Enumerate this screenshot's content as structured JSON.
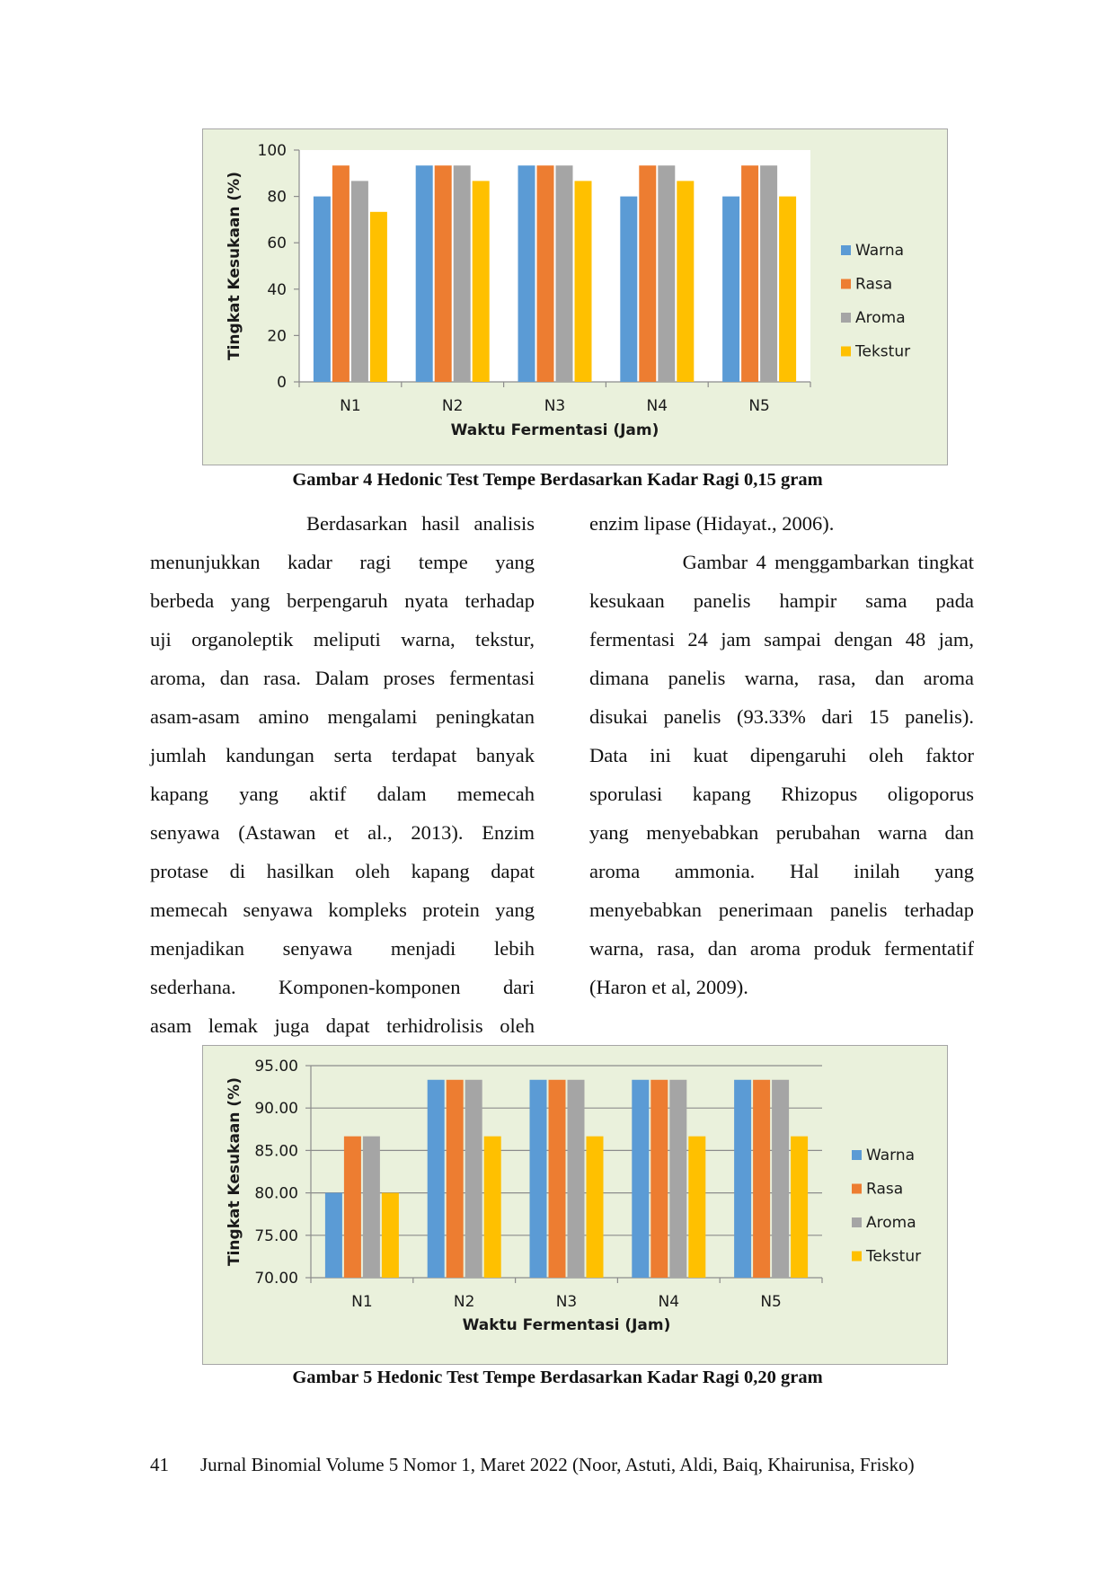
{
  "chart_data": [
    {
      "type": "bar",
      "categories": [
        "N1",
        "N2",
        "N3",
        "N4",
        "N5"
      ],
      "series": [
        {
          "name": "Warna",
          "values": [
            80,
            93.33,
            93.33,
            80,
            80
          ]
        },
        {
          "name": "Rasa",
          "values": [
            93.33,
            93.33,
            93.33,
            93.33,
            93.33
          ]
        },
        {
          "name": "Aroma",
          "values": [
            86.67,
            93.33,
            93.33,
            93.33,
            93.33
          ]
        },
        {
          "name": "Tekstur",
          "values": [
            73.33,
            86.67,
            86.67,
            86.67,
            80
          ]
        }
      ],
      "xlabel": "Waktu Fermentasi (Jam)",
      "ylabel": "Tingkat Kesukaan (%)",
      "ylim": [
        0,
        100
      ],
      "yticks": [
        "0",
        "20",
        "40",
        "60",
        "80",
        "100"
      ],
      "grid": false,
      "legend": "right",
      "colors": [
        "#5b9bd5",
        "#ed7d31",
        "#a5a5a5",
        "#ffc000"
      ]
    },
    {
      "type": "bar",
      "categories": [
        "N1",
        "N2",
        "N3",
        "N4",
        "N5"
      ],
      "series": [
        {
          "name": "Warna",
          "values": [
            80,
            93.33,
            93.33,
            93.33,
            93.33
          ]
        },
        {
          "name": "Rasa",
          "values": [
            86.67,
            93.33,
            93.33,
            93.33,
            93.33
          ]
        },
        {
          "name": "Aroma",
          "values": [
            86.67,
            93.33,
            93.33,
            93.33,
            93.33
          ]
        },
        {
          "name": "Tekstur",
          "values": [
            80,
            86.67,
            86.67,
            86.67,
            86.67
          ]
        }
      ],
      "xlabel": "Waktu Fermentasi (Jam)",
      "ylabel": "Tingkat Kesukaan (%)",
      "ylim": [
        70,
        95
      ],
      "yticks": [
        "70.00",
        "75.00",
        "80.00",
        "85.00",
        "90.00",
        "95.00"
      ],
      "grid": true,
      "legend": "right",
      "colors": [
        "#5b9bd5",
        "#ed7d31",
        "#a5a5a5",
        "#ffc000"
      ]
    }
  ],
  "captions": {
    "figure4": "Gambar 4 Hedonic Test Tempe Berdasarkan Kadar Ragi 0,15 gram",
    "figure5": "Gambar 5 Hedonic Test Tempe Berdasarkan Kadar Ragi 0,20 gram"
  },
  "body": {
    "left_lines": [
      "           Berdasarkan hasil analisis",
      "menunjukkan kadar ragi tempe yang",
      "berbeda yang berpengaruh nyata terhadap",
      "uji organoleptik meliputi warna, tekstur,",
      "aroma, dan rasa. Dalam proses fermentasi",
      "asam-asam amino mengalami peningkatan",
      "jumlah kandungan serta terdapat banyak",
      "kapang yang aktif dalam memecah",
      "senyawa (Astawan et al., 2013). Enzim",
      "protase di hasilkan oleh kapang dapat",
      "memecah senyawa kompleks protein yang",
      "menjadikan senyawa menjadi lebih",
      "sederhana. Komponen-komponen dari",
      "asam lemak juga dapat terhidrolisis oleh"
    ],
    "right_lines": [
      "enzim lipase (Hidayat., 2006).",
      "           Gambar 4 menggambarkan tingkat",
      "kesukaan panelis hampir sama pada",
      "fermentasi 24 jam sampai dengan 48 jam,",
      "dimana panelis warna, rasa, dan aroma",
      "disukai panelis (93.33% dari 15 panelis).",
      "Data ini kuat dipengaruhi oleh faktor",
      "sporulasi kapang Rhizopus oligoporus",
      "yang menyebabkan perubahan warna dan",
      "aroma ammonia. Hal inilah yang",
      "menyebabkan penerimaan panelis terhadap",
      "warna, rasa, dan aroma produk fermentatif",
      "(Haron et al, 2009)."
    ]
  },
  "footer": {
    "page_number": "41",
    "citation": "Jurnal Binomial Volume 5 Nomor 1, Maret 2022 (Noor, Astuti, Aldi, Baiq, Khairunisa, Frisko)"
  }
}
